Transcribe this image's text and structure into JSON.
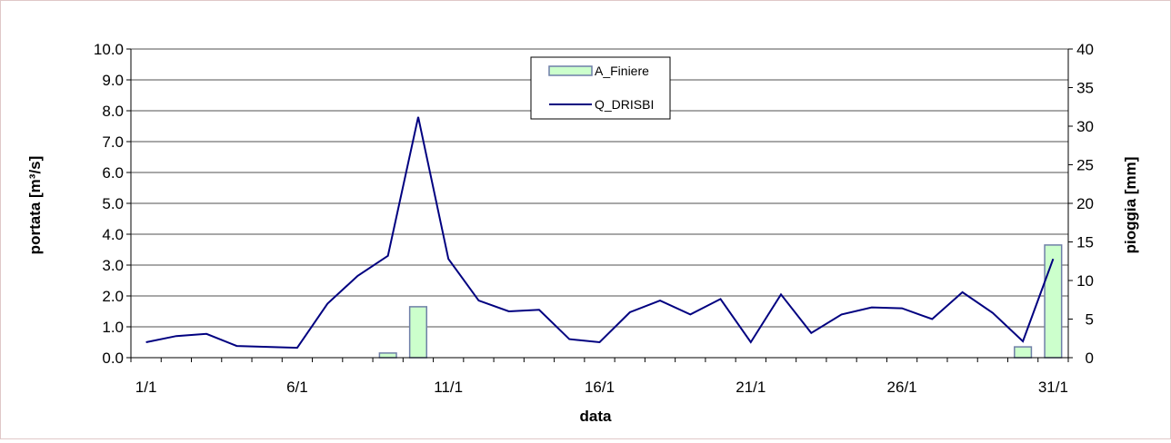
{
  "chart_data": {
    "type": "bar+line",
    "xlabel": "data",
    "ylabel_left": "portata [m³/s]",
    "ylabel_right": "pioggia [mm]",
    "left_axis": {
      "min": 0,
      "max": 10,
      "step": 1,
      "tick_labels": [
        "0.0",
        "1.0",
        "2.0",
        "3.0",
        "4.0",
        "5.0",
        "6.0",
        "7.0",
        "8.0",
        "9.0",
        "10.0"
      ]
    },
    "right_axis": {
      "min": 0,
      "max": 40,
      "step": 5,
      "tick_labels": [
        "0",
        "5",
        "10",
        "15",
        "20",
        "25",
        "30",
        "35",
        "40"
      ]
    },
    "x_tick_labels": [
      "1/1",
      "6/1",
      "11/1",
      "16/1",
      "21/1",
      "26/1",
      "31/1"
    ],
    "days": [
      1,
      2,
      3,
      4,
      5,
      6,
      7,
      8,
      9,
      10,
      11,
      12,
      13,
      14,
      15,
      16,
      17,
      18,
      19,
      20,
      21,
      22,
      23,
      24,
      25,
      26,
      27,
      28,
      29,
      30,
      31
    ],
    "legend_position": "top-center",
    "grid": true,
    "series": [
      {
        "name": "A_Finiere",
        "kind": "bar",
        "axis": "right",
        "color": "#ccffcc",
        "edge_color": "#6f7fa8",
        "values": [
          0,
          0,
          0,
          0,
          0,
          0,
          0,
          0,
          0.6,
          6.6,
          0,
          0,
          0,
          0,
          0,
          0,
          0,
          0,
          0,
          0,
          0,
          0,
          0,
          0,
          0,
          0,
          0,
          0,
          0,
          1.4,
          14.6
        ]
      },
      {
        "name": "Q_DRISBI",
        "kind": "line",
        "axis": "left",
        "color": "#000080",
        "values": [
          0.5,
          0.7,
          0.77,
          0.38,
          0.35,
          0.32,
          1.75,
          2.65,
          3.3,
          7.8,
          3.2,
          1.85,
          1.5,
          1.55,
          0.6,
          0.5,
          1.47,
          1.85,
          1.4,
          1.9,
          0.5,
          2.05,
          0.8,
          1.4,
          1.63,
          1.6,
          1.25,
          2.12,
          1.45,
          0.53,
          3.2
        ]
      }
    ]
  }
}
